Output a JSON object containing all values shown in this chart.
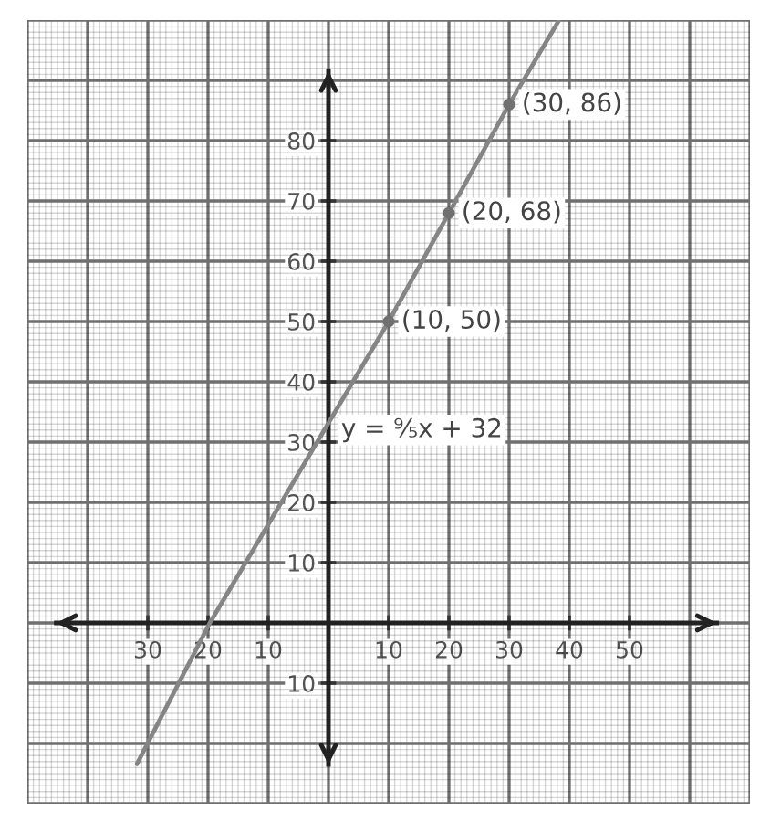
{
  "chart_data": {
    "type": "line",
    "series": [
      {
        "color": "#858585",
        "x": [
          -31.8,
          -19.7,
          10,
          20,
          30,
          38.3
        ],
        "values": [
          -23.4,
          0,
          50,
          68,
          86,
          100
        ]
      },
      {
        "type": "scatter",
        "color": "#707070",
        "x": [
          10,
          20,
          30
        ],
        "values": [
          50,
          68,
          86
        ],
        "marker": "circle"
      }
    ],
    "xlim": [
      -50,
      70
    ],
    "ylim": [
      -30,
      100
    ],
    "xticks": [
      {
        "value": -50,
        "label": null
      },
      {
        "value": -40,
        "label": null
      },
      {
        "value": -30,
        "label": "30"
      },
      {
        "value": -20,
        "label": "20"
      },
      {
        "value": -10,
        "label": "10"
      },
      {
        "value": 0,
        "label": null
      },
      10,
      20,
      30,
      40,
      50,
      {
        "value": 60,
        "label": null
      },
      {
        "value": 70,
        "label": null
      }
    ],
    "yticks": [
      {
        "value": -30,
        "label": null
      },
      {
        "value": -20,
        "label": null
      },
      {
        "value": -10,
        "label": "10"
      },
      {
        "value": 0,
        "label": null
      },
      10,
      20,
      30,
      40,
      50,
      60,
      70,
      80,
      {
        "value": 90,
        "label": null
      },
      {
        "value": 100,
        "label": null
      }
    ],
    "grid": true,
    "annotations": [
      {
        "text": "(10, 50)",
        "x": 10,
        "y": 50
      },
      {
        "text": "(20, 68)",
        "x": 20,
        "y": 68
      },
      {
        "text": "(30, 86)",
        "x": 30,
        "y": 86
      },
      {
        "text": "y = ⁹⁄₅x + 32",
        "x": 0,
        "y": 32
      }
    ]
  }
}
